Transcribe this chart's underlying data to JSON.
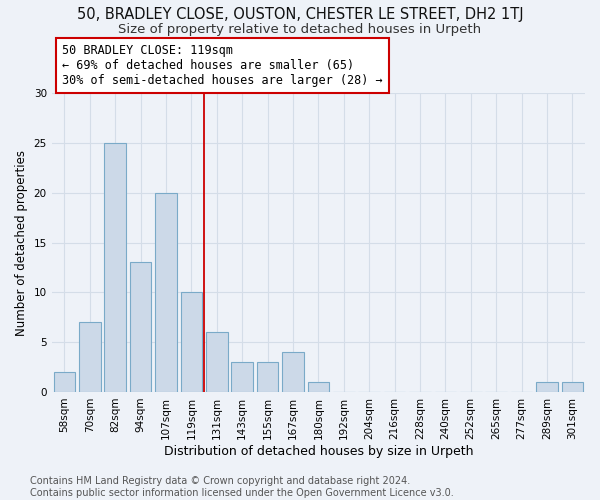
{
  "title_line1": "50, BRADLEY CLOSE, OUSTON, CHESTER LE STREET, DH2 1TJ",
  "title_line2": "Size of property relative to detached houses in Urpeth",
  "xlabel": "Distribution of detached houses by size in Urpeth",
  "ylabel": "Number of detached properties",
  "categories": [
    "58sqm",
    "70sqm",
    "82sqm",
    "94sqm",
    "107sqm",
    "119sqm",
    "131sqm",
    "143sqm",
    "155sqm",
    "167sqm",
    "180sqm",
    "192sqm",
    "204sqm",
    "216sqm",
    "228sqm",
    "240sqm",
    "252sqm",
    "265sqm",
    "277sqm",
    "289sqm",
    "301sqm"
  ],
  "values": [
    2,
    7,
    25,
    13,
    20,
    10,
    6,
    3,
    3,
    4,
    1,
    0,
    0,
    0,
    0,
    0,
    0,
    0,
    0,
    1,
    1
  ],
  "bar_color": "#ccd9e8",
  "bar_edge_color": "#7aaac8",
  "highlight_index": 5,
  "highlight_line_color": "#cc0000",
  "annotation_line1": "50 BRADLEY CLOSE: 119sqm",
  "annotation_line2": "← 69% of detached houses are smaller (65)",
  "annotation_line3": "30% of semi-detached houses are larger (28) →",
  "annotation_box_color": "#ffffff",
  "annotation_box_edge": "#cc0000",
  "ylim": [
    0,
    30
  ],
  "yticks": [
    0,
    5,
    10,
    15,
    20,
    25,
    30
  ],
  "grid_color": "#d4dde8",
  "background_color": "#eef2f8",
  "footer": "Contains HM Land Registry data © Crown copyright and database right 2024.\nContains public sector information licensed under the Open Government Licence v3.0.",
  "title_fontsize": 10.5,
  "subtitle_fontsize": 9.5,
  "xlabel_fontsize": 9,
  "ylabel_fontsize": 8.5,
  "tick_fontsize": 7.5,
  "annotation_fontsize": 8.5,
  "footer_fontsize": 7
}
